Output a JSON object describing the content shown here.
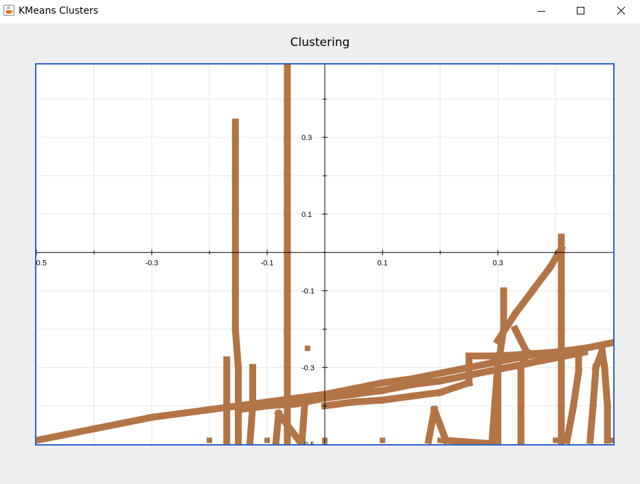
{
  "window": {
    "title": "KMeans Clusters",
    "app_icon": "java-cup-icon",
    "controls": [
      "minimize-icon",
      "maximize-icon",
      "close-icon"
    ]
  },
  "chart_data": {
    "type": "scatter",
    "title": "Clustering",
    "xlabel": "",
    "ylabel": "",
    "xlim": [
      -0.5,
      0.5
    ],
    "ylim": [
      -0.5,
      0.5
    ],
    "grid": true,
    "xticks": [
      -0.5,
      -0.3,
      -0.1,
      0.1,
      0.3
    ],
    "xtick_labels": [
      "-0.5",
      "-0.3",
      "-0.1",
      "0.1",
      "0.3"
    ],
    "yticks": [
      0.3,
      0.1,
      -0.1,
      -0.3,
      -0.5
    ],
    "ytick_labels": [
      "0.3",
      "0.1",
      "-0.1",
      "-0.3",
      "-0.5"
    ],
    "marker_color": "#b37446",
    "frame_color": "#2a62c9",
    "series": [
      {
        "points": [
          [
            -0.5,
            -0.49
          ],
          [
            -0.45,
            -0.475
          ],
          [
            -0.4,
            -0.46
          ],
          [
            -0.35,
            -0.445
          ],
          [
            -0.3,
            -0.43
          ],
          [
            -0.25,
            -0.42
          ],
          [
            -0.2,
            -0.41
          ],
          [
            -0.15,
            -0.4
          ],
          [
            -0.1,
            -0.39
          ],
          [
            -0.05,
            -0.38
          ],
          [
            0.0,
            -0.37
          ],
          [
            0.05,
            -0.355
          ],
          [
            0.1,
            -0.34
          ],
          [
            0.15,
            -0.33
          ],
          [
            0.2,
            -0.315
          ],
          [
            0.25,
            -0.3
          ],
          [
            0.3,
            -0.285
          ],
          [
            0.35,
            -0.27
          ],
          [
            0.4,
            -0.26
          ],
          [
            0.45,
            -0.25
          ],
          [
            0.5,
            -0.235
          ],
          [
            -0.15,
            -0.41
          ],
          [
            -0.1,
            -0.4
          ],
          [
            -0.05,
            -0.395
          ],
          [
            0.0,
            -0.38
          ],
          [
            0.05,
            -0.37
          ],
          [
            0.1,
            -0.36
          ],
          [
            0.15,
            -0.345
          ],
          [
            0.2,
            -0.335
          ],
          [
            0.25,
            -0.32
          ],
          [
            0.3,
            -0.305
          ],
          [
            0.35,
            -0.29
          ],
          [
            0.4,
            -0.275
          ],
          [
            0.45,
            -0.26
          ],
          [
            0.0,
            -0.4
          ],
          [
            0.05,
            -0.39
          ],
          [
            0.1,
            -0.385
          ],
          [
            0.15,
            -0.375
          ],
          [
            0.2,
            -0.365
          ],
          [
            0.25,
            -0.34
          ],
          [
            0.25,
            -0.27
          ],
          [
            0.3,
            -0.27
          ],
          [
            0.35,
            -0.265
          ],
          [
            0.4,
            -0.26
          ],
          [
            0.45,
            -0.25
          ],
          [
            -0.2,
            -0.49
          ],
          [
            -0.1,
            -0.49
          ],
          [
            0.0,
            -0.49
          ],
          [
            0.1,
            -0.49
          ],
          [
            0.2,
            -0.49
          ],
          [
            0.3,
            -0.49
          ],
          [
            0.4,
            -0.49
          ],
          [
            0.5,
            -0.49
          ],
          [
            -0.15,
            -0.5
          ],
          [
            -0.15,
            -0.4
          ],
          [
            -0.15,
            -0.3
          ],
          [
            -0.155,
            -0.2
          ],
          [
            -0.155,
            -0.1
          ],
          [
            -0.155,
            0.0
          ],
          [
            -0.155,
            0.1
          ],
          [
            -0.155,
            0.2
          ],
          [
            -0.155,
            0.3
          ],
          [
            -0.155,
            0.34
          ],
          [
            -0.065,
            -0.5
          ],
          [
            -0.065,
            -0.4
          ],
          [
            -0.065,
            -0.3
          ],
          [
            -0.065,
            -0.2
          ],
          [
            -0.065,
            -0.1
          ],
          [
            -0.065,
            0.0
          ],
          [
            -0.065,
            0.1
          ],
          [
            -0.065,
            0.2
          ],
          [
            -0.065,
            0.3
          ],
          [
            -0.065,
            0.4
          ],
          [
            -0.065,
            0.49
          ],
          [
            -0.17,
            -0.5
          ],
          [
            -0.17,
            -0.4
          ],
          [
            -0.17,
            -0.28
          ],
          [
            -0.13,
            -0.5
          ],
          [
            -0.125,
            -0.4
          ],
          [
            -0.125,
            -0.3
          ],
          [
            -0.085,
            -0.5
          ],
          [
            -0.08,
            -0.42
          ],
          [
            -0.04,
            -0.5
          ],
          [
            -0.035,
            -0.4
          ],
          [
            -0.03,
            -0.25
          ],
          [
            0.18,
            -0.49
          ],
          [
            0.185,
            -0.45
          ],
          [
            0.19,
            -0.41
          ],
          [
            0.2,
            -0.45
          ],
          [
            0.21,
            -0.49
          ],
          [
            0.3,
            -0.5
          ],
          [
            0.3,
            -0.4
          ],
          [
            0.3,
            -0.3
          ],
          [
            0.31,
            -0.2
          ],
          [
            0.31,
            -0.1
          ],
          [
            0.29,
            -0.49
          ],
          [
            0.295,
            -0.39
          ],
          [
            0.3,
            -0.29
          ],
          [
            0.34,
            -0.5
          ],
          [
            0.34,
            -0.4
          ],
          [
            0.34,
            -0.3
          ],
          [
            0.35,
            -0.26
          ],
          [
            0.33,
            -0.2
          ],
          [
            0.41,
            -0.5
          ],
          [
            0.41,
            -0.4
          ],
          [
            0.41,
            -0.3
          ],
          [
            0.41,
            -0.2
          ],
          [
            0.41,
            -0.1
          ],
          [
            0.41,
            0.0
          ],
          [
            0.41,
            0.04
          ],
          [
            0.3,
            -0.23
          ],
          [
            0.33,
            -0.16
          ],
          [
            0.36,
            -0.1
          ],
          [
            0.39,
            -0.04
          ],
          [
            0.41,
            0.01
          ],
          [
            0.42,
            -0.49
          ],
          [
            0.43,
            -0.41
          ],
          [
            0.44,
            -0.31
          ],
          [
            0.44,
            -0.27
          ],
          [
            0.46,
            -0.49
          ],
          [
            0.465,
            -0.4
          ],
          [
            0.47,
            -0.3
          ],
          [
            0.48,
            -0.26
          ],
          [
            0.49,
            -0.49
          ],
          [
            0.49,
            -0.4
          ],
          [
            0.485,
            -0.3
          ],
          [
            0.48,
            -0.25
          ]
        ]
      }
    ]
  }
}
